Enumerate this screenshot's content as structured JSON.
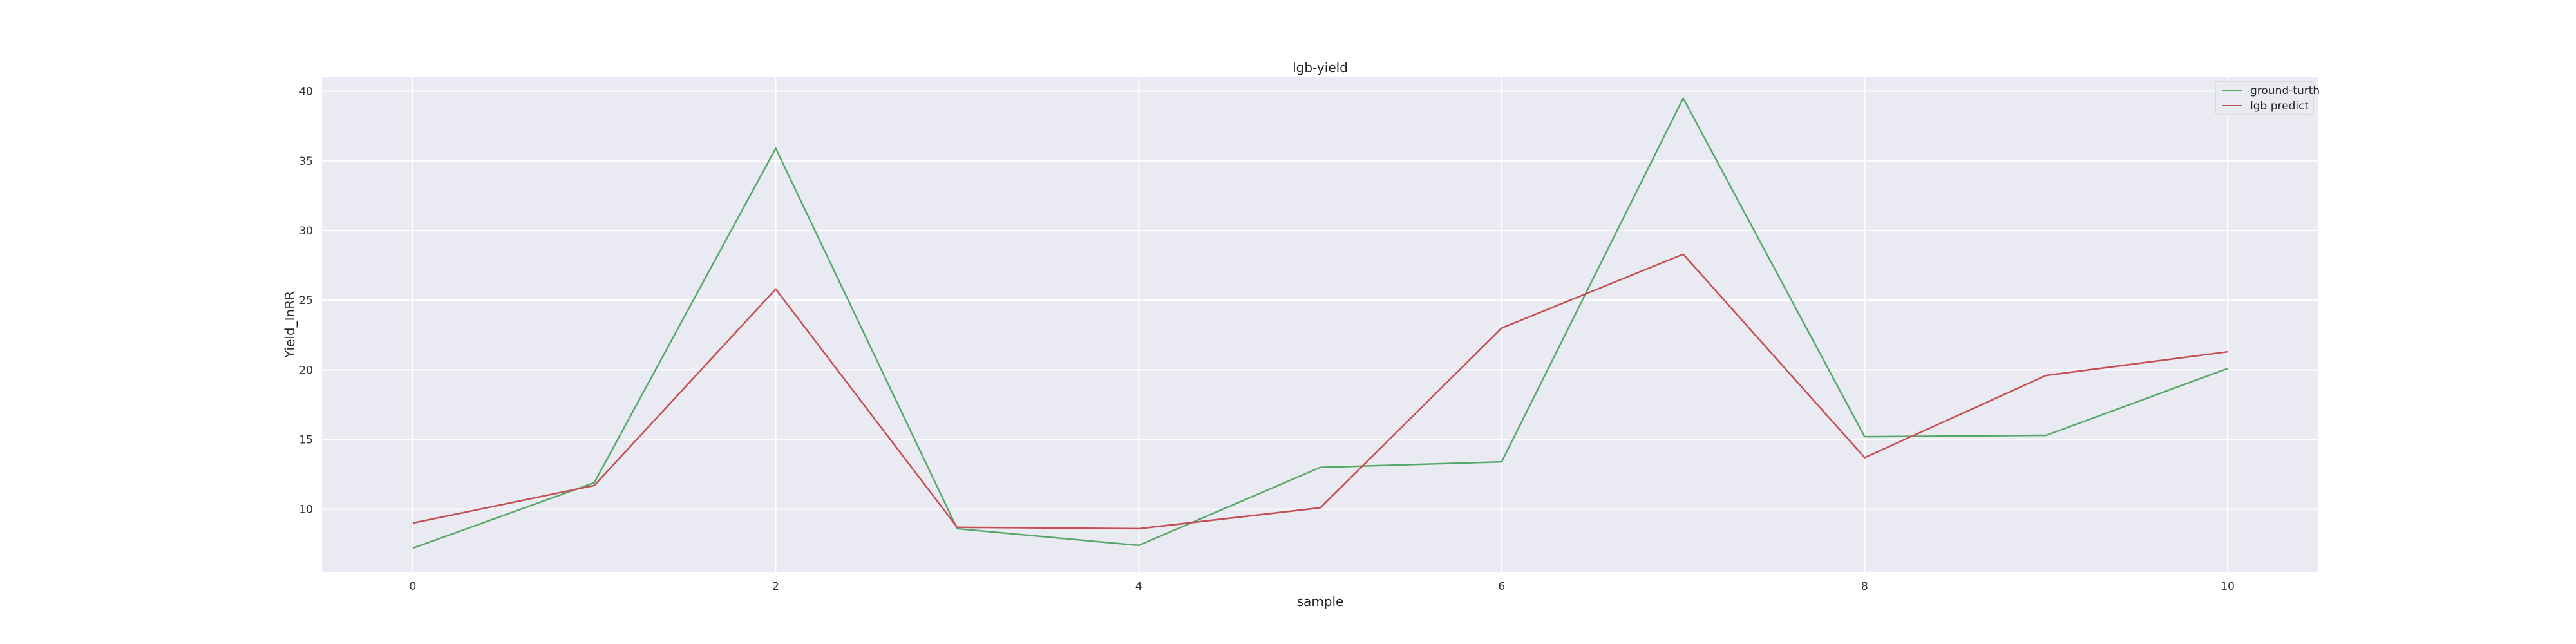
{
  "chart_data": {
    "type": "line",
    "title": "lgb-yield",
    "xlabel": "sample",
    "ylabel": "Yield_InRR",
    "x": [
      0,
      1,
      2,
      3,
      4,
      5,
      6,
      7,
      8,
      9,
      10
    ],
    "xlim": [
      -0.5,
      10.5
    ],
    "ylim": [
      5.5,
      41.0
    ],
    "xticks": [
      0,
      2,
      4,
      6,
      8,
      10
    ],
    "yticks": [
      10,
      15,
      20,
      25,
      30,
      35,
      40
    ],
    "grid": true,
    "legend_position": "top-right",
    "series": [
      {
        "name": "ground-turth",
        "color": "#55a868",
        "values": [
          7.2,
          11.9,
          35.9,
          8.6,
          7.4,
          13.0,
          13.4,
          39.5,
          15.2,
          15.3,
          20.1
        ]
      },
      {
        "name": "lgb predict",
        "color": "#c44e52",
        "values": [
          9.0,
          11.7,
          25.8,
          8.7,
          8.6,
          10.1,
          23.0,
          28.3,
          13.7,
          19.6,
          21.3
        ]
      }
    ]
  }
}
